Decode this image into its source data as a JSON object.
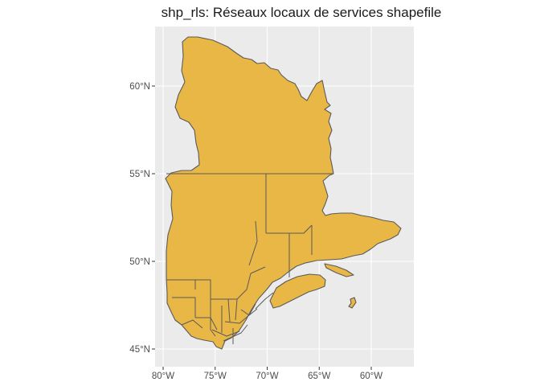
{
  "title": "shp_rls: Réseaux locaux de services shapefile",
  "chart_data": {
    "type": "map",
    "title": "shp_rls: Réseaux locaux de services shapefile",
    "layer": "Réseaux locaux de services",
    "fill_color": "#E8B746",
    "border_color": "#5a5a5a",
    "panel_background": "#EBEBEB",
    "grid": true,
    "x_ticks": [
      {
        "value": -80,
        "label": "80°W"
      },
      {
        "value": -75,
        "label": "75°W"
      },
      {
        "value": -70,
        "label": "70°W"
      },
      {
        "value": -65,
        "label": "65°W"
      },
      {
        "value": -60,
        "label": "60°W"
      }
    ],
    "y_ticks": [
      {
        "value": 45,
        "label": "45°N"
      },
      {
        "value": 50,
        "label": "50°N"
      },
      {
        "value": 55,
        "label": "55°N"
      },
      {
        "value": 60,
        "label": "60°N"
      }
    ],
    "xlim": [
      -80.5,
      -55.8
    ],
    "ylim": [
      44.7,
      63.1
    ]
  }
}
